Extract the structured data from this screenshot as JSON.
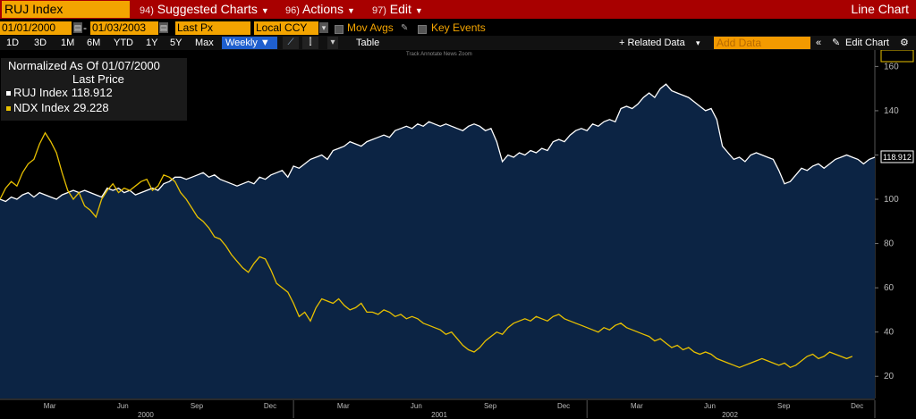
{
  "header": {
    "ticker": "RUJ Index",
    "menus": [
      {
        "num": "94)",
        "label": "Suggested Charts"
      },
      {
        "num": "96)",
        "label": "Actions"
      },
      {
        "num": "97)",
        "label": "Edit"
      }
    ],
    "chart_title": "Line Chart"
  },
  "controls": {
    "start_date": "01/01/2000",
    "end_date": "01/03/2003",
    "price_field": "Last Px",
    "currency": "Local CCY",
    "mov_avgs": "Mov Avgs",
    "key_events": "Key Events",
    "ranges": [
      "1D",
      "3D",
      "1M",
      "6M",
      "YTD",
      "1Y",
      "5Y",
      "Max"
    ],
    "frequency": "Weekly ▼",
    "table_label": "Table",
    "related_data": "+ Related Data",
    "add_data_placeholder": "Add Data",
    "edit_chart": "Edit Chart",
    "mini_tools": "Track   Annotate   News   Zoom"
  },
  "legend": {
    "normalized": "Normalized As Of 01/07/2000",
    "last_price": "Last Price",
    "series": [
      {
        "name": "RUJ Index",
        "value": "118.912"
      },
      {
        "name": "NDX Index",
        "value": "29.228"
      }
    ]
  },
  "colors": {
    "titlebar": "#a80000",
    "accent_orange": "#f3a400",
    "ruj_line": "#ffffff",
    "ndx_line": "#e8c000",
    "area_fill": "#0c2444"
  },
  "chart_data": {
    "type": "line",
    "title": "",
    "xlabel": "",
    "ylabel": "",
    "ylim": [
      10,
      165
    ],
    "yticks": [
      20,
      40,
      60,
      80,
      100,
      120,
      140,
      160
    ],
    "x_tick_labels": [
      "Mar",
      "Jun",
      "Sep",
      "Dec",
      "Mar",
      "Jun",
      "Sep",
      "Dec",
      "Mar",
      "Jun",
      "Sep",
      "Dec"
    ],
    "year_labels": [
      "2000",
      "2001",
      "2002"
    ],
    "series": [
      {
        "name": "RUJ Index",
        "last": "118.912",
        "values": [
          100,
          99,
          101,
          100,
          102,
          103,
          101,
          103,
          102,
          101,
          100,
          102,
          103,
          104,
          103,
          104,
          103,
          102,
          101,
          105,
          104,
          105,
          103,
          104,
          102,
          103,
          104,
          105,
          104,
          107,
          108,
          110,
          110,
          109,
          110,
          111,
          112,
          110,
          111,
          109,
          108,
          107,
          106,
          107,
          108,
          107,
          110,
          109,
          111,
          112,
          113,
          110,
          115,
          114,
          116,
          118,
          119,
          120,
          118,
          122,
          123,
          124,
          126,
          125,
          124,
          126,
          127,
          128,
          129,
          128,
          131,
          132,
          133,
          132,
          134,
          133,
          135,
          134,
          133,
          134,
          133,
          132,
          131,
          133,
          134,
          133,
          131,
          132,
          126,
          117,
          120,
          119,
          121,
          120,
          122,
          121,
          123,
          122,
          126,
          127,
          126,
          129,
          131,
          132,
          131,
          134,
          133,
          135,
          136,
          135,
          141,
          142,
          141,
          143,
          146,
          148,
          146,
          150,
          152,
          149,
          148,
          147,
          146,
          144,
          142,
          140,
          141,
          136,
          124,
          121,
          118,
          119,
          117,
          120,
          121,
          120,
          119,
          118,
          113,
          107,
          108,
          111,
          114,
          113,
          115,
          116,
          114,
          116,
          118,
          119,
          120,
          119,
          118,
          116,
          118,
          119
        ],
        "color": "#ffffff"
      },
      {
        "name": "NDX Index",
        "last": "29.228",
        "values": [
          100,
          105,
          108,
          106,
          112,
          116,
          118,
          125,
          130,
          126,
          121,
          112,
          104,
          100,
          103,
          97,
          95,
          92,
          100,
          104,
          107,
          103,
          105,
          104,
          106,
          108,
          109,
          104,
          106,
          111,
          110,
          108,
          103,
          100,
          96,
          92,
          90,
          87,
          83,
          82,
          79,
          75,
          72,
          69,
          67,
          71,
          74,
          73,
          68,
          62,
          60,
          58,
          53,
          47,
          49,
          45,
          51,
          55,
          54,
          53,
          55,
          52,
          50,
          51,
          53,
          49,
          49,
          48,
          50,
          49,
          47,
          48,
          46,
          47,
          46,
          44,
          43,
          42,
          41,
          39,
          40,
          37,
          34,
          32,
          31,
          33,
          36,
          38,
          40,
          39,
          42,
          44,
          45,
          46,
          45,
          47,
          46,
          45,
          47,
          48,
          46,
          45,
          44,
          43,
          42,
          41,
          40,
          42,
          41,
          43,
          44,
          42,
          41,
          40,
          39,
          38,
          36,
          37,
          35,
          33,
          34,
          32,
          33,
          31,
          30,
          31,
          30,
          28,
          27,
          26,
          25,
          24,
          25,
          26,
          27,
          28,
          27,
          26,
          25,
          26,
          24,
          25,
          27,
          29,
          30,
          28,
          29,
          31,
          30,
          29,
          28,
          29
        ],
        "color": "#e8c000"
      }
    ]
  }
}
